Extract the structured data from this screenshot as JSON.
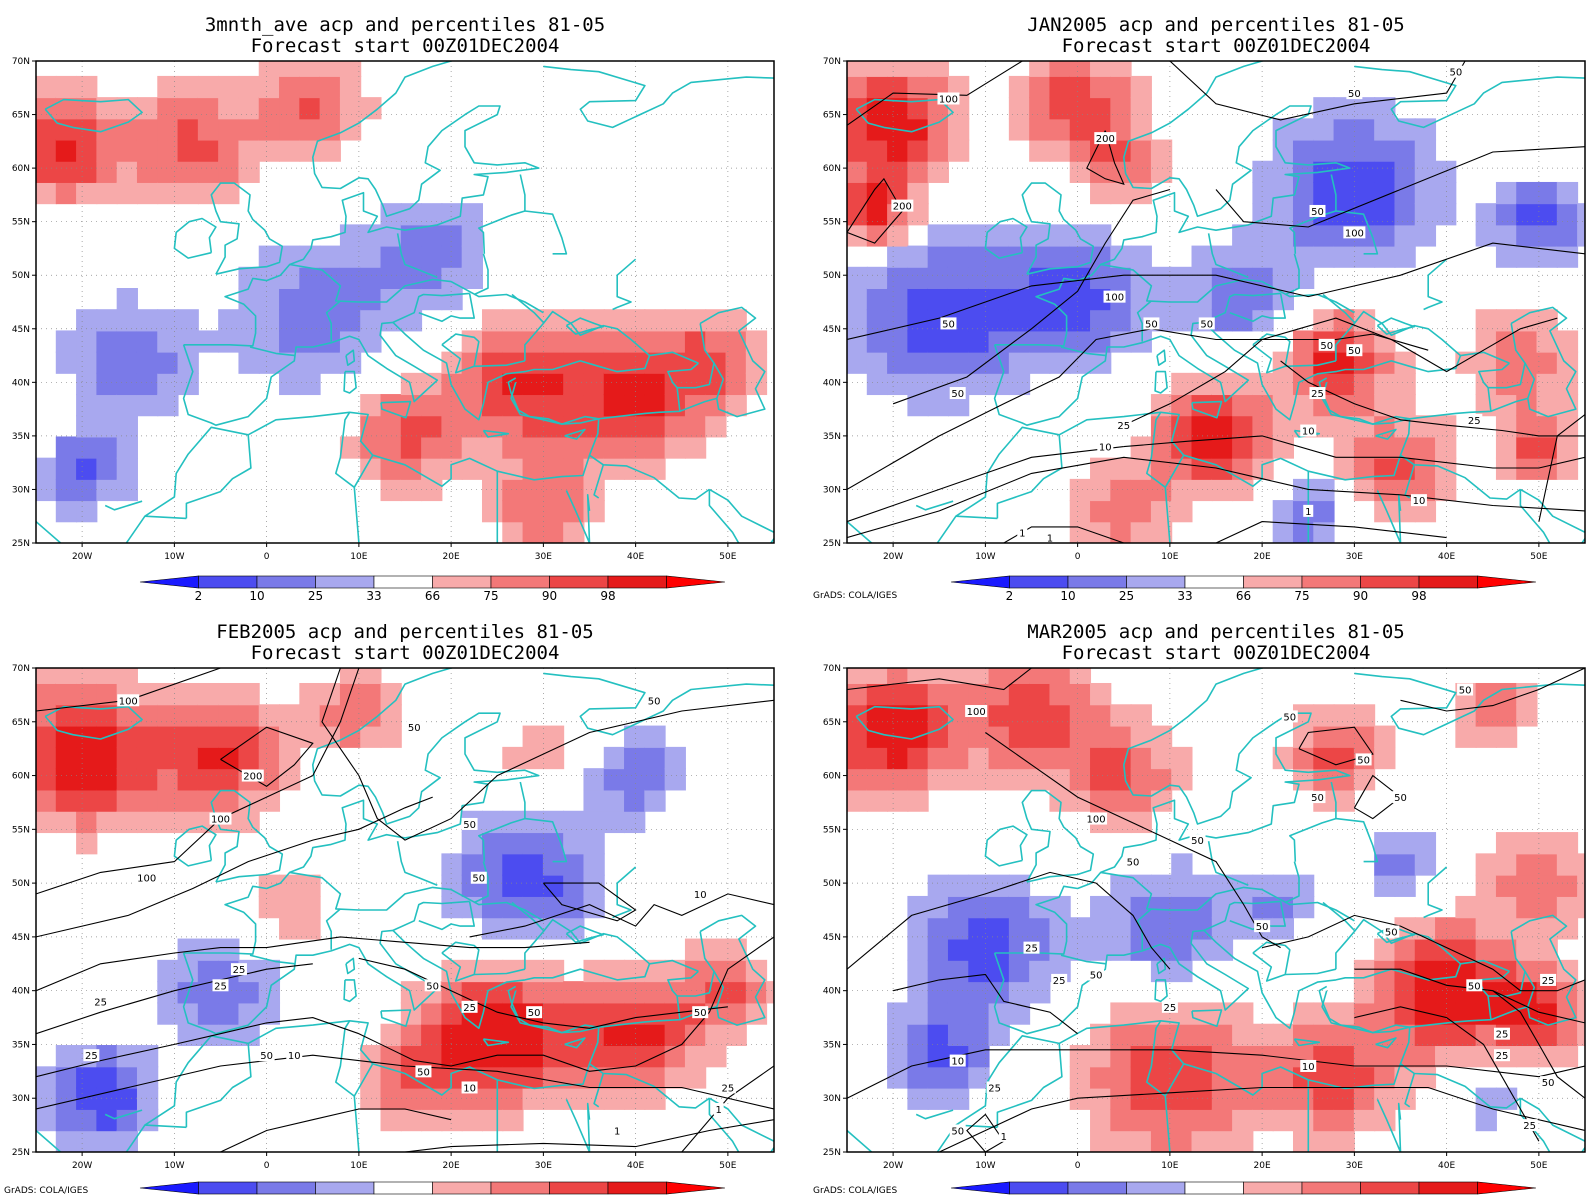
{
  "panels": [
    {
      "title_line1": "3mnth_ave acp and percentiles 81-05",
      "title_line2": "Forecast start 00Z01DEC2004",
      "credit": "",
      "contours": []
    },
    {
      "title_line1": "JAN2005 acp and percentiles 81-05",
      "title_line2": "Forecast start 00Z01DEC2004",
      "credit": "GrADS: COLA/IGES",
      "contours": [
        "100",
        "200",
        "200",
        "50",
        "50",
        "50",
        "50",
        "100",
        "100",
        "50",
        "50",
        "50",
        "50",
        "50",
        "50",
        "25",
        "25",
        "25",
        "10",
        "10",
        "10",
        "1",
        "1",
        "1"
      ]
    },
    {
      "title_line1": "FEB2005 acp and percentiles 81-05",
      "title_line2": "Forecast start 00Z01DEC2004",
      "credit": "GrADS: COLA/IGES",
      "contours": [
        "100",
        "200",
        "50",
        "50",
        "50",
        "100",
        "100",
        "50",
        "25",
        "25",
        "50",
        "25",
        "25",
        "50",
        "50",
        "50",
        "50",
        "25",
        "10",
        "10",
        "10",
        "25",
        "1",
        "1"
      ]
    },
    {
      "title_line1": "MAR2005 acp and percentiles 81-05",
      "title_line2": "Forecast start 00Z01DEC2004",
      "credit": "GrADS: COLA/IGES",
      "contours": [
        "100",
        "50",
        "50",
        "50",
        "50",
        "50",
        "100",
        "50",
        "50",
        "50",
        "25",
        "25",
        "50",
        "50",
        "50",
        "25",
        "25",
        "25",
        "10",
        "10",
        "50",
        "25",
        "1",
        "25",
        "50",
        "25"
      ]
    }
  ],
  "map": {
    "lat_ticks": [
      "70N",
      "65N",
      "60N",
      "55N",
      "50N",
      "45N",
      "40N",
      "35N",
      "30N",
      "25N"
    ],
    "lon_ticks": [
      "20W",
      "10W",
      "0",
      "10E",
      "20E",
      "30E",
      "40E",
      "50E"
    ]
  },
  "colorbar": {
    "labels": [
      "2",
      "10",
      "25",
      "33",
      "66",
      "75",
      "90",
      "98"
    ],
    "colors": [
      "#1a1aff",
      "#4c4cf0",
      "#7a7ae8",
      "#a8a8ef",
      "#ffffff",
      "#f8aaaa",
      "#f37878",
      "#ec4646",
      "#e51a1a",
      "#ff0000"
    ]
  },
  "colors": {
    "coastline": "#24c0c0",
    "contour": "#000000",
    "grid": "#888888"
  }
}
